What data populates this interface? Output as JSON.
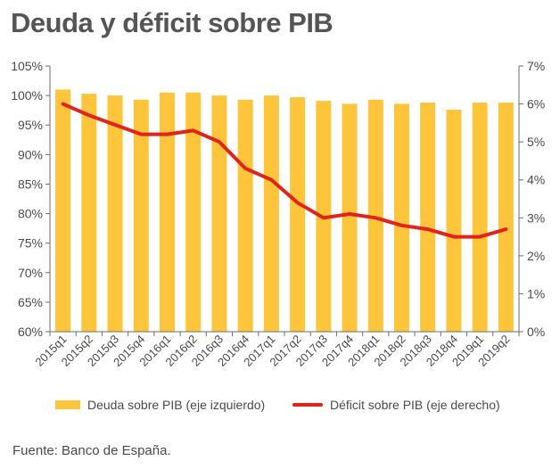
{
  "chart_data": {
    "type": "bar+line",
    "title": "Deuda y déficit sobre PIB",
    "categories": [
      "2015q1",
      "2015q2",
      "2015q3",
      "2015q4",
      "2016q1",
      "2016q2",
      "2016q3",
      "2016q4",
      "2017q1",
      "2017q2",
      "2017q3",
      "2017q4",
      "2018q1",
      "2018q2",
      "2018q3",
      "2018q4",
      "2019q1",
      "2019q2"
    ],
    "series": [
      {
        "name": "Deuda sobre PIB (eje izquierdo)",
        "type": "bar",
        "axis": "left",
        "color": "#fcc53b",
        "values": [
          101.0,
          100.3,
          100.0,
          99.3,
          100.5,
          100.5,
          100.0,
          99.3,
          100.0,
          99.7,
          99.1,
          98.6,
          99.3,
          98.6,
          98.8,
          97.6,
          98.8,
          98.8
        ]
      },
      {
        "name": "Déficit sobre PIB (eje derecho)",
        "type": "line",
        "axis": "right",
        "color": "#e2231a",
        "values": [
          6.0,
          5.7,
          5.45,
          5.2,
          5.2,
          5.3,
          5.0,
          4.3,
          4.0,
          3.4,
          3.0,
          3.1,
          3.0,
          2.8,
          2.7,
          2.5,
          2.5,
          2.7
        ]
      }
    ],
    "ylim_left": [
      60,
      105
    ],
    "yticks_left": [
      60,
      65,
      70,
      75,
      80,
      85,
      90,
      95,
      100,
      105
    ],
    "yticklabels_left": [
      "60%",
      "65%",
      "70%",
      "75%",
      "80%",
      "85%",
      "90%",
      "95%",
      "100%",
      "105%"
    ],
    "ylim_right": [
      0,
      7
    ],
    "yticks_right": [
      0,
      1,
      2,
      3,
      4,
      5,
      6,
      7
    ],
    "yticklabels_right": [
      "0%",
      "1%",
      "2%",
      "3%",
      "4%",
      "5%",
      "6%",
      "7%"
    ],
    "legend_position": "bottom",
    "grid": false
  },
  "legend": {
    "bar_label": "Deuda sobre PIB (eje izquierdo)",
    "line_label": "Déficit sobre PIB (eje derecho)"
  },
  "source": "Fuente: Banco de España."
}
